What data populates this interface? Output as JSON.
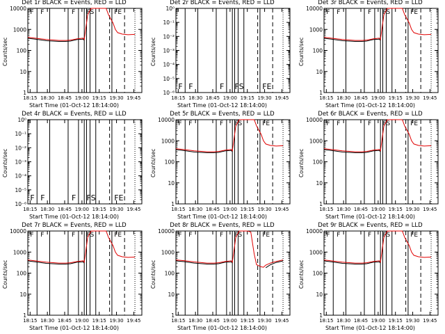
{
  "chart_data": [
    {
      "type": "line",
      "title": "Det 1r BLACK = Events, RED = LLD",
      "xlabel": "Start Time (01-Oct-12 18:14:00)",
      "ylabel": "Counts/sec",
      "scale": "log",
      "ylim": [
        1,
        10000
      ],
      "yticks": [
        "1",
        "10",
        "100",
        "1000",
        "10000"
      ],
      "xticks": [
        "18:15",
        "18:30",
        "18:45",
        "19:00",
        "19:15",
        "19:30",
        "19:45"
      ],
      "markers": [
        "F",
        "F",
        "F",
        "FS",
        "FE"
      ],
      "profile": "flare",
      "series": [
        {
          "values": []
        }
      ]
    },
    {
      "type": "line",
      "title": "Det 2r BLACK = Events, RED = LLD",
      "xlabel": "Start Time (01-Oct-12 18:14:00)",
      "ylabel": "Counts/sec",
      "scale": "log",
      "ylim": [
        1e-06,
        1
      ],
      "yticks": [
        "10⁰",
        "10⁻¹",
        "10⁻²",
        "10⁻³",
        "10⁻⁴",
        "10⁻⁵",
        "10⁻⁶"
      ],
      "xticks": [
        "18:15",
        "18:30",
        "18:45",
        "19:00",
        "19:15",
        "19:30",
        "19:45"
      ],
      "markers": [
        "F",
        "F",
        "F",
        "FS",
        "FE"
      ],
      "profile": "empty",
      "series": []
    },
    {
      "type": "line",
      "title": "Det 3r BLACK = Events, RED = LLD",
      "xlabel": "Start Time (01-Oct-12 18:14:00)",
      "ylabel": "Counts/sec",
      "scale": "log",
      "ylim": [
        1,
        10000
      ],
      "yticks": [
        "1",
        "10",
        "100",
        "1000",
        "10000"
      ],
      "xticks": [
        "18:15",
        "18:30",
        "18:45",
        "19:00",
        "19:15",
        "19:30",
        "19:45"
      ],
      "markers": [
        "F",
        "F",
        "F",
        "FS",
        "FE"
      ],
      "profile": "flare",
      "series": []
    },
    {
      "type": "line",
      "title": "Det 4r BLACK = Events, RED = LLD",
      "xlabel": "Start Time (01-Oct-12 18:14:00)",
      "ylabel": "Counts/sec",
      "scale": "log",
      "ylim": [
        1e-06,
        1
      ],
      "yticks": [
        "10⁰",
        "10⁻¹",
        "10⁻²",
        "10⁻³",
        "10⁻⁴",
        "10⁻⁵",
        "10⁻⁶"
      ],
      "xticks": [
        "18:15",
        "18:30",
        "18:45",
        "19:00",
        "19:15",
        "19:30",
        "19:45"
      ],
      "markers": [
        "F",
        "F",
        "F",
        "FS",
        "FE"
      ],
      "profile": "empty",
      "series": []
    },
    {
      "type": "line",
      "title": "Det 5r BLACK = Events, RED = LLD",
      "xlabel": "Start Time (01-Oct-12 18:14:00)",
      "ylabel": "Counts/sec",
      "scale": "log",
      "ylim": [
        1,
        10000
      ],
      "yticks": [
        "1",
        "10",
        "100",
        "1000",
        "10000"
      ],
      "xticks": [
        "18:15",
        "18:30",
        "18:45",
        "19:00",
        "19:15",
        "19:30",
        "19:45"
      ],
      "markers": [
        "F",
        "F",
        "F",
        "FS",
        "FE"
      ],
      "profile": "flare",
      "series": []
    },
    {
      "type": "line",
      "title": "Det 6r BLACK = Events, RED = LLD",
      "xlabel": "Start Time (01-Oct-12 18:14:00)",
      "ylabel": "Counts/sec",
      "scale": "log",
      "ylim": [
        1,
        10000
      ],
      "yticks": [
        "1",
        "10",
        "100",
        "1000",
        "10000"
      ],
      "xticks": [
        "18:15",
        "18:30",
        "18:45",
        "19:00",
        "19:15",
        "19:30",
        "19:45"
      ],
      "markers": [
        "F",
        "F",
        "F",
        "FS",
        "FE"
      ],
      "profile": "flare",
      "series": []
    },
    {
      "type": "line",
      "title": "Det 7r BLACK = Events, RED = LLD",
      "xlabel": "Start Time (01-Oct-12 18:14:00)",
      "ylabel": "Counts/sec",
      "scale": "log",
      "ylim": [
        1,
        10000
      ],
      "yticks": [
        "1",
        "10",
        "100",
        "1000",
        "10000"
      ],
      "xticks": [
        "18:15",
        "18:30",
        "18:45",
        "19:00",
        "19:15",
        "19:30",
        "19:45"
      ],
      "markers": [
        "F",
        "F",
        "F",
        "FS",
        "FE"
      ],
      "profile": "flare",
      "series": []
    },
    {
      "type": "line",
      "title": "Det 8r BLACK = Events, RED = LLD",
      "xlabel": "Start Time (01-Oct-12 18:14:00)",
      "ylabel": "Counts/sec",
      "scale": "log",
      "ylim": [
        1,
        10000
      ],
      "yticks": [
        "1",
        "10",
        "100",
        "1000",
        "10000"
      ],
      "xticks": [
        "18:15",
        "18:30",
        "18:45",
        "19:00",
        "19:15",
        "19:30",
        "19:45"
      ],
      "markers": [
        "F",
        "F",
        "F",
        "FS",
        "FE"
      ],
      "profile": "flare8",
      "series": []
    },
    {
      "type": "line",
      "title": "Det 9r BLACK = Events, RED = LLD",
      "xlabel": "Start Time (01-Oct-12 18:14:00)",
      "ylabel": "Counts/sec",
      "scale": "log",
      "ylim": [
        1,
        10000
      ],
      "yticks": [
        "1",
        "10",
        "100",
        "1000",
        "10000"
      ],
      "xticks": [
        "18:15",
        "18:30",
        "18:45",
        "19:00",
        "19:15",
        "19:30",
        "19:45"
      ],
      "markers": [
        "F",
        "F",
        "F",
        "FS",
        "FE"
      ],
      "profile": "flare",
      "series": []
    }
  ],
  "colors": {
    "events": "#000000",
    "lld": "#e00000"
  },
  "timeline": {
    "solid_lines": [
      "18:21",
      "18:32",
      "18:48",
      "18:57",
      "19:02",
      "19:04",
      "19:07",
      "19:12",
      "19:26"
    ],
    "dashed_lines": [
      "19:24",
      "19:37"
    ],
    "dotted_lines": [
      "18:13",
      "19:46"
    ],
    "marker_times": [
      "18:15",
      "18:24",
      "18:51",
      "19:04",
      "19:28"
    ],
    "xrange": [
      "18:13",
      "19:52"
    ]
  },
  "series_data": {
    "flare_times": [
      "18:13",
      "18:20",
      "18:29",
      "18:40",
      "18:46",
      "18:50",
      "18:56",
      "19:00",
      "19:01",
      "19:02",
      "19:05",
      "19:08",
      "19:10",
      "19:13",
      "19:15",
      "19:18",
      "19:21",
      "19:23",
      "19:27",
      "19:29",
      "19:31",
      "19:35",
      "19:40",
      "19:46"
    ],
    "flare_lld": [
      420,
      380,
      330,
      300,
      300,
      310,
      360,
      380,
      385,
      330,
      5000,
      10000,
      10000,
      10000,
      10000,
      10000,
      10000,
      5000,
      2000,
      1000,
      700,
      600,
      560,
      580
    ],
    "flare_events": [
      380,
      340,
      290,
      270,
      270,
      280,
      330,
      340,
      345,
      300,
      "",
      "",
      "",
      "",
      "",
      "",
      "",
      "",
      "",
      "",
      "",
      "",
      "",
      ""
    ],
    "flare8_lld": [
      420,
      390,
      340,
      300,
      300,
      310,
      360,
      380,
      385,
      330,
      5000,
      10000,
      10000,
      10000,
      10000,
      9000,
      800,
      250,
      200,
      190,
      240,
      300,
      360,
      420
    ],
    "flare8_events": [
      380,
      350,
      300,
      270,
      270,
      280,
      330,
      340,
      345,
      300,
      "",
      "",
      "",
      "",
      "",
      "",
      "",
      "",
      "",
      "",
      180,
      250,
      320,
      380
    ]
  }
}
